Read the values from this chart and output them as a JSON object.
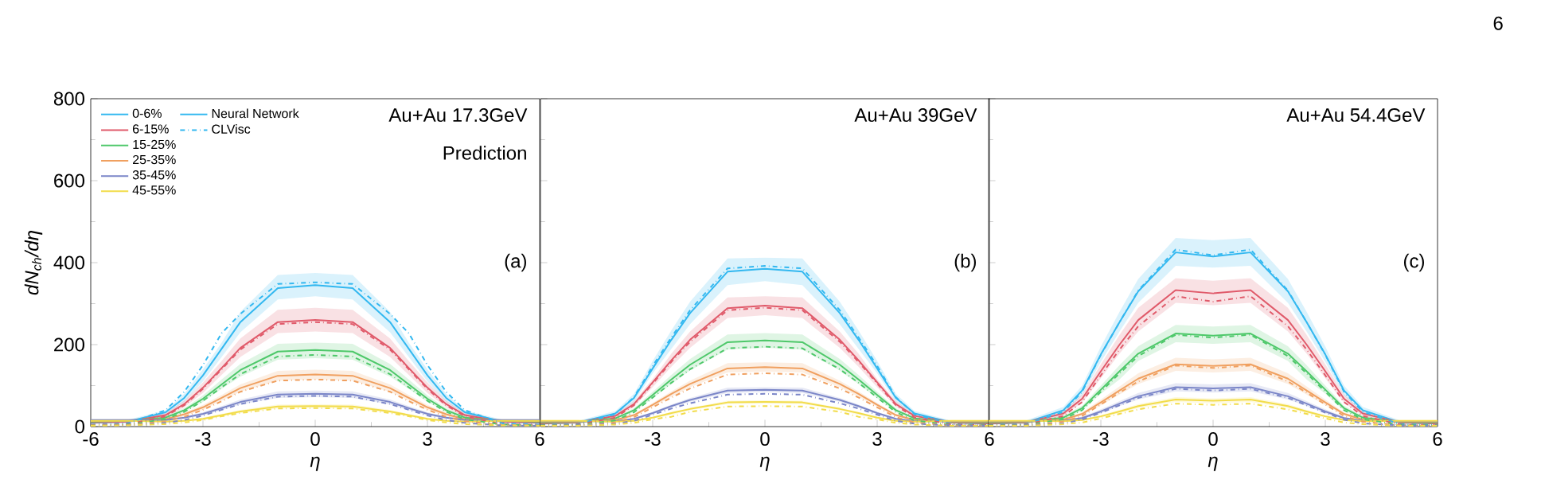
{
  "chart_data": [
    {
      "type": "line",
      "title": "Au+Au 17.3GeV",
      "xlabel": "η",
      "ylabel": "dN$_{ch}$/dη",
      "annotations": [
        "Prediction",
        "(a)",
        "Neural Network",
        "CLVisc"
      ],
      "legend": "top left",
      "xlim": [
        -6,
        6
      ],
      "xticks": [
        -6,
        -3,
        0,
        3,
        6
      ],
      "ylim": [
        0,
        800
      ],
      "yticks": [
        0,
        200,
        400,
        600,
        800
      ],
      "x": [
        -6,
        -5,
        -4,
        -3.5,
        -3,
        -2.5,
        -2,
        -1,
        0,
        1,
        2,
        2.5,
        3,
        3.5,
        4,
        5,
        6
      ],
      "series": [
        {
          "name": "0-6%",
          "color": "#33b8f0",
          "line_style": "solid",
          "values": [
            10,
            12,
            35,
            70,
            125,
            190,
            255,
            338,
            345,
            338,
            255,
            190,
            125,
            70,
            35,
            12,
            10
          ],
          "lower": [
            6,
            8,
            30,
            60,
            110,
            170,
            230,
            310,
            318,
            310,
            230,
            170,
            110,
            60,
            30,
            8,
            6
          ],
          "upper": [
            14,
            17,
            40,
            80,
            140,
            205,
            280,
            370,
            375,
            370,
            280,
            205,
            140,
            80,
            40,
            17,
            14
          ]
        },
        {
          "name": "6-15%",
          "color": "#e05a6a",
          "line_style": "solid",
          "values": [
            10,
            12,
            28,
            55,
            95,
            143,
            192,
            255,
            260,
            255,
            192,
            143,
            95,
            55,
            28,
            12,
            10
          ],
          "lower": [
            7,
            9,
            23,
            47,
            82,
            126,
            170,
            228,
            232,
            228,
            170,
            126,
            82,
            47,
            23,
            9,
            7
          ],
          "upper": [
            14,
            16,
            33,
            63,
            108,
            160,
            215,
            285,
            290,
            285,
            215,
            160,
            108,
            63,
            33,
            16,
            14
          ]
        },
        {
          "name": "15-25%",
          "color": "#4ec86a",
          "line_style": "solid",
          "values": [
            12,
            14,
            22,
            40,
            68,
            103,
            138,
            183,
            187,
            183,
            138,
            103,
            68,
            40,
            22,
            14,
            12
          ],
          "lower": [
            9,
            11,
            18,
            35,
            60,
            92,
            122,
            163,
            167,
            163,
            122,
            92,
            60,
            35,
            18,
            11,
            9
          ],
          "upper": [
            15,
            17,
            26,
            45,
            76,
            115,
            153,
            202,
            205,
            202,
            153,
            115,
            76,
            45,
            26,
            17,
            15
          ]
        },
        {
          "name": "25-35%",
          "color": "#f0a060",
          "line_style": "solid",
          "values": [
            14,
            15,
            18,
            30,
            47,
            70,
            94,
            124,
            127,
            124,
            94,
            70,
            47,
            30,
            18,
            15,
            14
          ],
          "lower": [
            11,
            12,
            15,
            26,
            41,
            63,
            85,
            112,
            115,
            112,
            85,
            63,
            41,
            26,
            15,
            12,
            11
          ],
          "upper": [
            17,
            18,
            21,
            34,
            53,
            77,
            103,
            136,
            139,
            136,
            103,
            77,
            53,
            34,
            21,
            18,
            17
          ]
        },
        {
          "name": "35-45%",
          "color": "#7b86c8",
          "line_style": "solid",
          "values": [
            16,
            16,
            16,
            22,
            31,
            45,
            60,
            78,
            80,
            78,
            60,
            45,
            31,
            22,
            16,
            16,
            16
          ],
          "lower": [
            13,
            13,
            13,
            19,
            27,
            40,
            54,
            70,
            72,
            70,
            54,
            40,
            27,
            19,
            13,
            13,
            13
          ],
          "upper": [
            18,
            18,
            19,
            25,
            35,
            50,
            66,
            86,
            88,
            86,
            66,
            50,
            35,
            25,
            19,
            18,
            18
          ]
        },
        {
          "name": "45-55%",
          "color": "#f2dc4a",
          "line_style": "solid",
          "values": [
            14,
            14,
            12,
            14,
            19,
            28,
            37,
            49,
            50,
            49,
            37,
            28,
            19,
            14,
            12,
            14,
            14
          ],
          "lower": [
            12,
            12,
            10,
            12,
            16,
            25,
            33,
            44,
            45,
            44,
            33,
            25,
            16,
            12,
            10,
            12,
            12
          ],
          "upper": [
            16,
            16,
            14,
            16,
            22,
            31,
            41,
            54,
            55,
            54,
            41,
            31,
            22,
            16,
            14,
            16,
            16
          ]
        },
        {
          "color": "#33b8f0",
          "line_style": "dashdot",
          "values": [
            5,
            8,
            40,
            85,
            150,
            228,
            275,
            348,
            352,
            348,
            275,
            228,
            150,
            85,
            40,
            8,
            5
          ]
        },
        {
          "color": "#e05a6a",
          "line_style": "dashdot",
          "values": [
            4,
            6,
            25,
            52,
            92,
            140,
            188,
            250,
            255,
            250,
            188,
            140,
            92,
            52,
            25,
            6,
            4
          ]
        },
        {
          "color": "#4ec86a",
          "line_style": "dashdot",
          "values": [
            3,
            5,
            18,
            36,
            63,
            96,
            128,
            171,
            175,
            171,
            128,
            96,
            63,
            36,
            18,
            5,
            3
          ]
        },
        {
          "color": "#f0a060",
          "line_style": "dashdot",
          "values": [
            3,
            4,
            13,
            24,
            41,
            62,
            85,
            112,
            115,
            112,
            85,
            62,
            41,
            24,
            13,
            4,
            3
          ]
        },
        {
          "color": "#7b86c8",
          "line_style": "dashdot",
          "values": [
            2,
            3,
            9,
            16,
            27,
            41,
            55,
            73,
            75,
            73,
            55,
            41,
            27,
            16,
            9,
            3,
            2
          ]
        },
        {
          "color": "#f2dc4a",
          "line_style": "dashdot",
          "values": [
            2,
            3,
            6,
            10,
            16,
            25,
            33,
            44,
            45,
            44,
            33,
            25,
            16,
            10,
            6,
            3,
            2
          ]
        }
      ]
    },
    {
      "type": "line",
      "title": "Au+Au 39GeV",
      "xlabel": "η",
      "annotations": [
        "(b)"
      ],
      "tick_labels": "x",
      "xlim": [
        -6,
        6
      ],
      "xticks": [
        {
          "value": -6,
          "label": null
        },
        -3,
        0,
        3,
        6
      ],
      "ylim": [
        0,
        800
      ],
      "yticks": [
        0,
        200,
        400,
        600,
        800
      ],
      "x": [
        -6,
        -5,
        -4,
        -3.5,
        -3,
        -2.5,
        -2,
        -1,
        0,
        1,
        2,
        2.5,
        3,
        3.5,
        4,
        5,
        6
      ],
      "series": [
        {
          "color": "#33b8f0",
          "line_style": "solid",
          "values": [
            8,
            10,
            32,
            70,
            142,
            212,
            277,
            378,
            385,
            378,
            277,
            212,
            142,
            70,
            32,
            10,
            8
          ],
          "lower": [
            5,
            7,
            26,
            60,
            130,
            190,
            250,
            345,
            355,
            345,
            250,
            190,
            130,
            60,
            26,
            7,
            5
          ],
          "upper": [
            12,
            14,
            38,
            80,
            160,
            235,
            305,
            410,
            412,
            410,
            305,
            235,
            160,
            80,
            38,
            14,
            12
          ]
        },
        {
          "color": "#e05a6a",
          "line_style": "solid",
          "values": [
            8,
            10,
            26,
            55,
            108,
            162,
            212,
            289,
            295,
            289,
            212,
            162,
            108,
            55,
            26,
            10,
            8
          ],
          "lower": [
            5,
            7,
            22,
            48,
            96,
            146,
            192,
            265,
            272,
            265,
            192,
            146,
            96,
            48,
            22,
            7,
            5
          ],
          "upper": [
            12,
            14,
            30,
            62,
            116,
            178,
            232,
            315,
            318,
            315,
            232,
            178,
            116,
            62,
            30,
            14,
            12
          ]
        },
        {
          "color": "#4ec86a",
          "line_style": "solid",
          "values": [
            10,
            11,
            20,
            40,
            77,
            115,
            151,
            206,
            210,
            206,
            151,
            115,
            77,
            40,
            20,
            11,
            10
          ],
          "lower": [
            7,
            8,
            17,
            35,
            69,
            104,
            137,
            188,
            192,
            188,
            137,
            104,
            69,
            35,
            17,
            8,
            7
          ],
          "upper": [
            13,
            14,
            23,
            45,
            85,
            126,
            165,
            225,
            228,
            225,
            165,
            126,
            85,
            45,
            23,
            14,
            13
          ]
        },
        {
          "color": "#f0a060",
          "line_style": "solid",
          "values": [
            12,
            12,
            16,
            28,
            53,
            80,
            104,
            142,
            145,
            142,
            104,
            80,
            53,
            28,
            16,
            12,
            12
          ],
          "lower": [
            10,
            10,
            14,
            25,
            48,
            73,
            96,
            132,
            134,
            132,
            96,
            73,
            48,
            25,
            14,
            10,
            10
          ],
          "upper": [
            14,
            14,
            18,
            31,
            58,
            86,
            112,
            155,
            157,
            155,
            112,
            86,
            58,
            31,
            18,
            14,
            14
          ]
        },
        {
          "color": "#7b86c8",
          "line_style": "solid",
          "values": [
            13,
            13,
            13,
            19,
            33,
            50,
            65,
            88,
            90,
            88,
            65,
            50,
            33,
            19,
            13,
            13,
            13
          ],
          "lower": [
            11,
            11,
            11,
            17,
            30,
            46,
            60,
            82,
            84,
            82,
            60,
            46,
            30,
            17,
            11,
            11,
            11
          ],
          "upper": [
            15,
            15,
            15,
            21,
            36,
            54,
            70,
            95,
            96,
            95,
            70,
            54,
            36,
            21,
            15,
            15,
            15
          ]
        },
        {
          "color": "#f2dc4a",
          "line_style": "solid",
          "values": [
            14,
            14,
            12,
            14,
            22,
            33,
            43,
            59,
            60,
            59,
            43,
            33,
            22,
            14,
            12,
            14,
            14
          ],
          "lower": [
            12,
            12,
            10,
            12,
            20,
            28,
            40,
            55,
            56,
            55,
            40,
            28,
            20,
            12,
            10,
            12,
            12
          ],
          "upper": [
            16,
            16,
            14,
            16,
            24,
            36,
            46,
            63,
            64,
            63,
            46,
            36,
            24,
            16,
            14,
            16,
            16
          ]
        },
        {
          "color": "#33b8f0",
          "line_style": "dashdot",
          "values": [
            4,
            6,
            30,
            72,
            148,
            218,
            284,
            386,
            392,
            386,
            284,
            218,
            148,
            72,
            30,
            6,
            4
          ]
        },
        {
          "color": "#e05a6a",
          "line_style": "dashdot",
          "values": [
            3,
            5,
            22,
            52,
            105,
            158,
            207,
            284,
            290,
            284,
            207,
            158,
            105,
            52,
            22,
            5,
            3
          ]
        },
        {
          "color": "#4ec86a",
          "line_style": "dashdot",
          "values": [
            3,
            4,
            15,
            35,
            71,
            107,
            140,
            191,
            195,
            191,
            140,
            107,
            71,
            35,
            15,
            4,
            3
          ]
        },
        {
          "color": "#f0a060",
          "line_style": "dashdot",
          "values": [
            2,
            3,
            10,
            23,
            47,
            71,
            93,
            127,
            130,
            127,
            93,
            71,
            47,
            23,
            10,
            3,
            2
          ]
        },
        {
          "color": "#7b86c8",
          "line_style": "dashdot",
          "values": [
            2,
            3,
            7,
            14,
            29,
            44,
            57,
            78,
            80,
            78,
            57,
            44,
            29,
            14,
            7,
            3,
            2
          ]
        },
        {
          "color": "#f2dc4a",
          "line_style": "dashdot",
          "values": [
            2,
            2,
            5,
            9,
            18,
            24,
            36,
            49,
            50,
            49,
            36,
            24,
            18,
            9,
            5,
            2,
            2
          ]
        }
      ]
    },
    {
      "type": "line",
      "title": "Au+Au 54.4GeV",
      "xlabel": "η",
      "annotations": [
        "(c)",
        "6"
      ],
      "tick_labels": "x",
      "xlim": [
        -6,
        6
      ],
      "xticks": [
        {
          "value": -6,
          "label": null
        },
        -3,
        0,
        3,
        6
      ],
      "ylim": [
        0,
        800
      ],
      "yticks": [
        0,
        200,
        400,
        600,
        800
      ],
      "x": [
        -6,
        -5,
        -4,
        -3.5,
        -3,
        -2.5,
        -2,
        -1,
        0,
        1,
        2,
        2.5,
        3,
        3.5,
        4,
        5,
        6
      ],
      "series": [
        {
          "color": "#33b8f0",
          "line_style": "solid",
          "values": [
            8,
            10,
            40,
            88,
            176,
            255,
            330,
            425,
            415,
            425,
            330,
            255,
            176,
            88,
            40,
            10,
            8
          ],
          "lower": [
            5,
            7,
            32,
            76,
            158,
            232,
            302,
            392,
            388,
            392,
            302,
            232,
            158,
            76,
            32,
            7,
            5
          ],
          "upper": [
            12,
            15,
            48,
            100,
            195,
            280,
            360,
            460,
            455,
            460,
            360,
            280,
            195,
            100,
            48,
            15,
            12
          ]
        },
        {
          "color": "#e05a6a",
          "line_style": "solid",
          "values": [
            8,
            10,
            32,
            68,
            135,
            200,
            260,
            333,
            325,
            333,
            260,
            200,
            135,
            68,
            32,
            10,
            8
          ],
          "lower": [
            5,
            7,
            26,
            58,
            118,
            178,
            232,
            302,
            296,
            302,
            232,
            178,
            118,
            58,
            26,
            7,
            5
          ],
          "upper": [
            12,
            14,
            38,
            78,
            152,
            224,
            290,
            362,
            356,
            362,
            290,
            224,
            152,
            78,
            38,
            14,
            12
          ]
        },
        {
          "color": "#4ec86a",
          "line_style": "solid",
          "values": [
            10,
            11,
            22,
            45,
            90,
            135,
            178,
            227,
            222,
            227,
            178,
            135,
            90,
            45,
            22,
            11,
            10
          ],
          "lower": [
            7,
            8,
            18,
            39,
            80,
            115,
            160,
            206,
            202,
            206,
            160,
            115,
            80,
            39,
            18,
            8,
            7
          ],
          "upper": [
            13,
            14,
            26,
            51,
            100,
            150,
            196,
            248,
            244,
            248,
            196,
            150,
            100,
            51,
            26,
            14,
            13
          ]
        },
        {
          "color": "#f0a060",
          "line_style": "solid",
          "values": [
            12,
            12,
            17,
            31,
            59,
            88,
            117,
            152,
            148,
            152,
            117,
            88,
            59,
            31,
            17,
            12,
            12
          ],
          "lower": [
            10,
            10,
            14,
            27,
            52,
            78,
            104,
            136,
            132,
            136,
            104,
            78,
            52,
            27,
            14,
            10,
            10
          ],
          "upper": [
            14,
            14,
            20,
            35,
            66,
            98,
            130,
            168,
            164,
            168,
            130,
            98,
            66,
            35,
            20,
            14,
            14
          ]
        },
        {
          "color": "#7b86c8",
          "line_style": "solid",
          "values": [
            13,
            13,
            14,
            21,
            37,
            56,
            74,
            96,
            93,
            96,
            74,
            56,
            37,
            21,
            14,
            13,
            13
          ],
          "lower": [
            11,
            11,
            12,
            18,
            32,
            50,
            66,
            86,
            83,
            86,
            66,
            50,
            32,
            18,
            12,
            11,
            11
          ],
          "upper": [
            15,
            15,
            16,
            24,
            42,
            62,
            82,
            106,
            103,
            106,
            82,
            62,
            42,
            24,
            16,
            15,
            15
          ]
        },
        {
          "color": "#f2dc4a",
          "line_style": "solid",
          "values": [
            14,
            14,
            13,
            16,
            25,
            37,
            50,
            66,
            63,
            66,
            50,
            37,
            25,
            16,
            13,
            14,
            14
          ],
          "lower": [
            12,
            12,
            11,
            14,
            22,
            33,
            45,
            60,
            57,
            60,
            45,
            33,
            22,
            14,
            11,
            12,
            12
          ],
          "upper": [
            16,
            16,
            15,
            18,
            28,
            41,
            55,
            72,
            69,
            72,
            55,
            41,
            28,
            18,
            15,
            16,
            16
          ]
        },
        {
          "color": "#33b8f0",
          "line_style": "dashdot",
          "values": [
            4,
            6,
            36,
            85,
            175,
            255,
            332,
            432,
            418,
            432,
            332,
            255,
            175,
            85,
            36,
            6,
            4
          ]
        },
        {
          "color": "#e05a6a",
          "line_style": "dashdot",
          "values": [
            3,
            5,
            26,
            60,
            125,
            188,
            245,
            318,
            305,
            318,
            245,
            188,
            125,
            60,
            26,
            5,
            3
          ]
        },
        {
          "color": "#4ec86a",
          "line_style": "dashdot",
          "values": [
            3,
            4,
            18,
            40,
            85,
            130,
            172,
            224,
            217,
            224,
            172,
            130,
            85,
            40,
            18,
            4,
            3
          ]
        },
        {
          "color": "#f0a060",
          "line_style": "dashdot",
          "values": [
            2,
            3,
            12,
            26,
            54,
            83,
            110,
            149,
            143,
            149,
            110,
            83,
            54,
            26,
            12,
            3,
            2
          ]
        },
        {
          "color": "#7b86c8",
          "line_style": "dashdot",
          "values": [
            2,
            3,
            8,
            17,
            34,
            52,
            70,
            92,
            88,
            92,
            70,
            52,
            34,
            17,
            8,
            3,
            2
          ]
        },
        {
          "color": "#f2dc4a",
          "line_style": "dashdot",
          "values": [
            2,
            2,
            6,
            10,
            20,
            31,
            42,
            56,
            53,
            56,
            42,
            31,
            20,
            10,
            6,
            2,
            2
          ]
        }
      ]
    }
  ]
}
